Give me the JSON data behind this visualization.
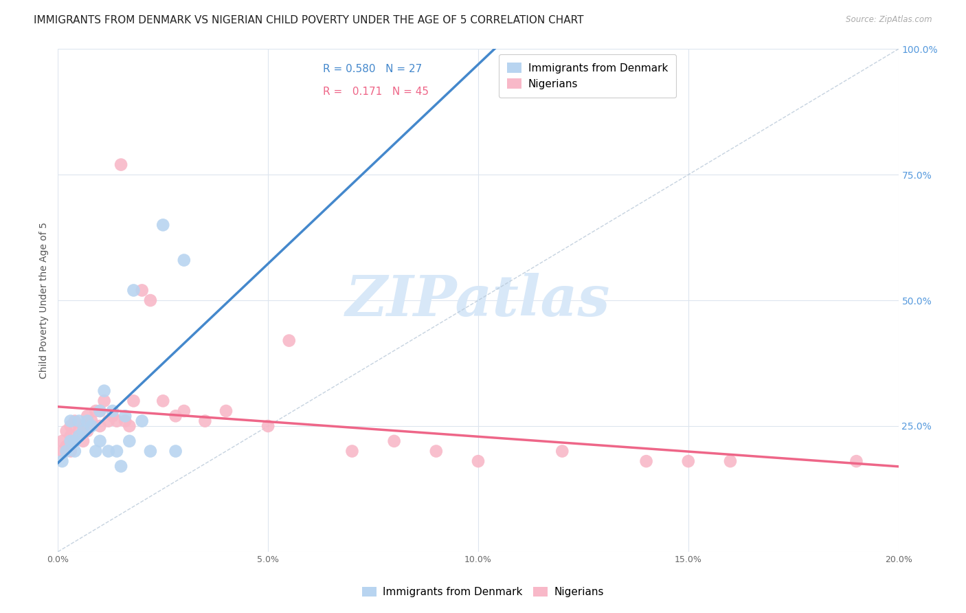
{
  "title": "IMMIGRANTS FROM DENMARK VS NIGERIAN CHILD POVERTY UNDER THE AGE OF 5 CORRELATION CHART",
  "source": "Source: ZipAtlas.com",
  "ylabel": "Child Poverty Under the Age of 5",
  "xlim": [
    0.0,
    0.2
  ],
  "ylim": [
    0.0,
    1.0
  ],
  "xticks": [
    0.0,
    0.05,
    0.1,
    0.15,
    0.2
  ],
  "yticks": [
    0.0,
    0.25,
    0.5,
    0.75,
    1.0
  ],
  "xticklabels": [
    "0.0%",
    "5.0%",
    "10.0%",
    "15.0%",
    "20.0%"
  ],
  "yticklabels_right": [
    "",
    "25.0%",
    "50.0%",
    "75.0%",
    "100.0%"
  ],
  "blue_scatter_color": "#b8d4f0",
  "pink_scatter_color": "#f8b8c8",
  "blue_line_color": "#4488cc",
  "pink_line_color": "#ee6688",
  "blue_R": "0.580",
  "blue_N": "27",
  "pink_R": "0.171",
  "pink_N": "45",
  "denmark_x": [
    0.001,
    0.002,
    0.003,
    0.003,
    0.004,
    0.004,
    0.005,
    0.005,
    0.006,
    0.007,
    0.008,
    0.009,
    0.01,
    0.01,
    0.011,
    0.012,
    0.013,
    0.014,
    0.015,
    0.016,
    0.017,
    0.018,
    0.02,
    0.022,
    0.025,
    0.028,
    0.03
  ],
  "denmark_y": [
    0.18,
    0.2,
    0.22,
    0.26,
    0.22,
    0.2,
    0.23,
    0.26,
    0.24,
    0.26,
    0.25,
    0.2,
    0.28,
    0.22,
    0.32,
    0.2,
    0.28,
    0.2,
    0.17,
    0.27,
    0.22,
    0.52,
    0.26,
    0.2,
    0.65,
    0.2,
    0.58
  ],
  "nigeria_x": [
    0.001,
    0.001,
    0.002,
    0.002,
    0.003,
    0.003,
    0.003,
    0.004,
    0.004,
    0.005,
    0.005,
    0.006,
    0.006,
    0.007,
    0.007,
    0.008,
    0.009,
    0.01,
    0.01,
    0.011,
    0.012,
    0.013,
    0.014,
    0.015,
    0.016,
    0.017,
    0.018,
    0.02,
    0.022,
    0.025,
    0.028,
    0.03,
    0.035,
    0.04,
    0.05,
    0.055,
    0.07,
    0.08,
    0.09,
    0.1,
    0.12,
    0.14,
    0.15,
    0.16,
    0.19
  ],
  "nigeria_y": [
    0.22,
    0.2,
    0.24,
    0.21,
    0.23,
    0.2,
    0.25,
    0.22,
    0.26,
    0.24,
    0.23,
    0.25,
    0.22,
    0.27,
    0.24,
    0.26,
    0.28,
    0.25,
    0.28,
    0.3,
    0.26,
    0.27,
    0.26,
    0.77,
    0.26,
    0.25,
    0.3,
    0.52,
    0.5,
    0.3,
    0.27,
    0.28,
    0.26,
    0.28,
    0.25,
    0.42,
    0.2,
    0.22,
    0.2,
    0.18,
    0.2,
    0.18,
    0.18,
    0.18,
    0.18
  ],
  "background_color": "#ffffff",
  "grid_color": "#dde5ee",
  "title_fontsize": 11,
  "axis_label_fontsize": 10,
  "tick_fontsize": 9,
  "legend_fontsize": 11,
  "watermark_text": "ZIPatlas",
  "watermark_color": "#d8e8f8"
}
